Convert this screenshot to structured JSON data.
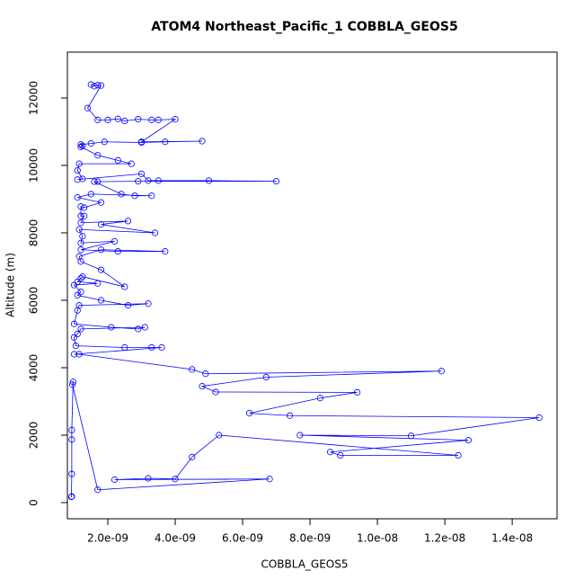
{
  "chart_data": {
    "type": "line",
    "title": "ATOM4 Northeast_Pacific_1 COBBLA_GEOS5",
    "x_label": "COBBLA_GEOS5",
    "y_label": "Altitude (m)",
    "color": "#0000ff",
    "x": [
      1.5e-09,
      1.6e-09,
      1.7e-09,
      1.8e-09,
      1.4e-09,
      1.7e-09,
      2e-09,
      2.3e-09,
      2.5e-09,
      2.9e-09,
      3.3e-09,
      3.5e-09,
      4e-09,
      3e-09,
      4.8e-09,
      3.7e-09,
      3e-09,
      1.9e-09,
      1.5e-09,
      1.2e-09,
      1.25e-09,
      1.2e-09,
      1.7e-09,
      2.3e-09,
      2.7e-09,
      1.15e-09,
      1.1e-09,
      1.25e-09,
      1.1e-09,
      3e-09,
      3.2e-09,
      3.5e-09,
      5e-09,
      7e-09,
      2.9e-09,
      1.7e-09,
      1.6e-09,
      2.4e-09,
      2.8e-09,
      3.3e-09,
      1.5e-09,
      1.1e-09,
      1.8e-09,
      1.3e-09,
      1.2e-09,
      1.2e-09,
      1.3e-09,
      1.2e-09,
      2.6e-09,
      1.8e-09,
      3.4e-09,
      1.15e-09,
      1.25e-09,
      1.2e-09,
      2.2e-09,
      1.2e-09,
      2.3e-09,
      3.7e-09,
      1.8e-09,
      1.15e-09,
      1.2e-09,
      1.8e-09,
      2.5e-09,
      1.25e-09,
      1.2e-09,
      1.1e-09,
      1.7e-09,
      1e-09,
      1.2e-09,
      1.1e-09,
      1.8e-09,
      2.6e-09,
      3.2e-09,
      1.15e-09,
      1.1e-09,
      1e-09,
      2.1e-09,
      2.9e-09,
      3.1e-09,
      1.2e-09,
      1.1e-09,
      1e-09,
      1.05e-09,
      2.5e-09,
      3.3e-09,
      3.6e-09,
      1e-09,
      1.15e-09,
      4.5e-09,
      4.9e-09,
      1.19e-08,
      6.7e-09,
      4.8e-09,
      5.2e-09,
      9.4e-09,
      8.3e-09,
      6.2e-09,
      7.4e-09,
      1.48e-08,
      1.1e-08,
      7.7e-09,
      1.27e-08,
      8.6e-09,
      8.9e-09,
      1.24e-08,
      5.3e-09,
      4.5e-09,
      4e-09,
      3.2e-09,
      2.2e-09,
      6.8e-09,
      1.7e-09,
      9.5e-10,
      9.7e-10,
      9.3e-10,
      9.3e-10,
      9.3e-10,
      9.2e-10,
      9.3e-10
    ],
    "values": [
      12400,
      12350,
      12380,
      12370,
      11700,
      11350,
      11350,
      11380,
      11320,
      11370,
      11350,
      11350,
      11370,
      10700,
      10720,
      10700,
      10680,
      10700,
      10650,
      10620,
      10580,
      10550,
      10300,
      10150,
      10050,
      10050,
      9850,
      9600,
      9580,
      9750,
      9550,
      9550,
      9550,
      9530,
      9530,
      9520,
      9520,
      9150,
      9100,
      9100,
      9150,
      9050,
      8900,
      8750,
      8780,
      8500,
      8500,
      8300,
      8350,
      8250,
      8000,
      8100,
      7900,
      7700,
      7750,
      7500,
      7450,
      7450,
      7500,
      7300,
      7150,
      6900,
      6400,
      6700,
      6650,
      6550,
      6500,
      6450,
      6250,
      6150,
      6000,
      5850,
      5900,
      5850,
      5700,
      5300,
      5200,
      5150,
      5200,
      5150,
      5000,
      4900,
      4650,
      4600,
      4600,
      4600,
      4400,
      4400,
      3950,
      3820,
      3900,
      3720,
      3450,
      3280,
      3270,
      3100,
      2650,
      2580,
      2520,
      1980,
      2000,
      1850,
      1500,
      1400,
      1400,
      2000,
      1350,
      700,
      720,
      680,
      700,
      380,
      3500,
      3580,
      2150,
      1870,
      850,
      170,
      180
    ],
    "xlim": [
      8e-10,
      1.533e-08
    ],
    "ylim": [
      -480,
      13360
    ],
    "xticks": [
      {
        "value": 2e-09,
        "label": "2.0e-09"
      },
      {
        "value": 4e-09,
        "label": "4.0e-09"
      },
      {
        "value": 6e-09,
        "label": "6.0e-09"
      },
      {
        "value": 8e-09,
        "label": "8.0e-09"
      },
      {
        "value": 1e-08,
        "label": "1.0e-08"
      },
      {
        "value": 1.2e-08,
        "label": "1.2e-08"
      },
      {
        "value": 1.4e-08,
        "label": "1.4e-08"
      }
    ],
    "yticks": [
      0,
      2000,
      4000,
      6000,
      8000,
      10000,
      12000
    ]
  }
}
